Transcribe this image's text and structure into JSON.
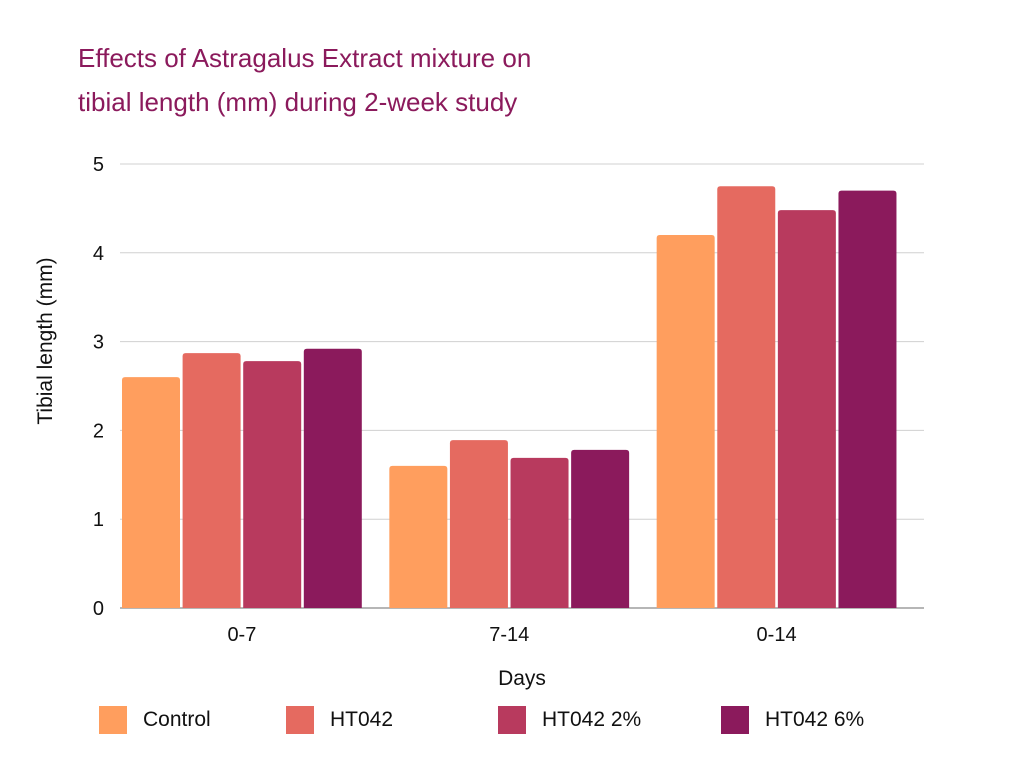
{
  "chart_data": {
    "type": "bar",
    "title_lines": [
      "Effects of Astragalus Extract mixture on",
      "tibial length (mm) during 2-week study"
    ],
    "xlabel": "Days",
    "ylabel": "Tibial length (mm)",
    "ylim": [
      0,
      5
    ],
    "yticks": [
      "0",
      "1",
      "2",
      "3",
      "4",
      "5"
    ],
    "grid": true,
    "legend_position": "bottom",
    "categories": [
      "0-7",
      "7-14",
      "0-14"
    ],
    "series": [
      {
        "name": "Control",
        "color": "#ff9e5e",
        "values": [
          2.6,
          1.6,
          4.2
        ]
      },
      {
        "name": "HT042",
        "color": "#e56a60",
        "values": [
          2.87,
          1.89,
          4.75
        ]
      },
      {
        "name": "HT042 2%",
        "color": "#b83a5e",
        "values": [
          2.78,
          1.69,
          4.48
        ]
      },
      {
        "name": "HT042 6%",
        "color": "#8b1a5c",
        "values": [
          2.92,
          1.78,
          4.7
        ]
      }
    ]
  }
}
